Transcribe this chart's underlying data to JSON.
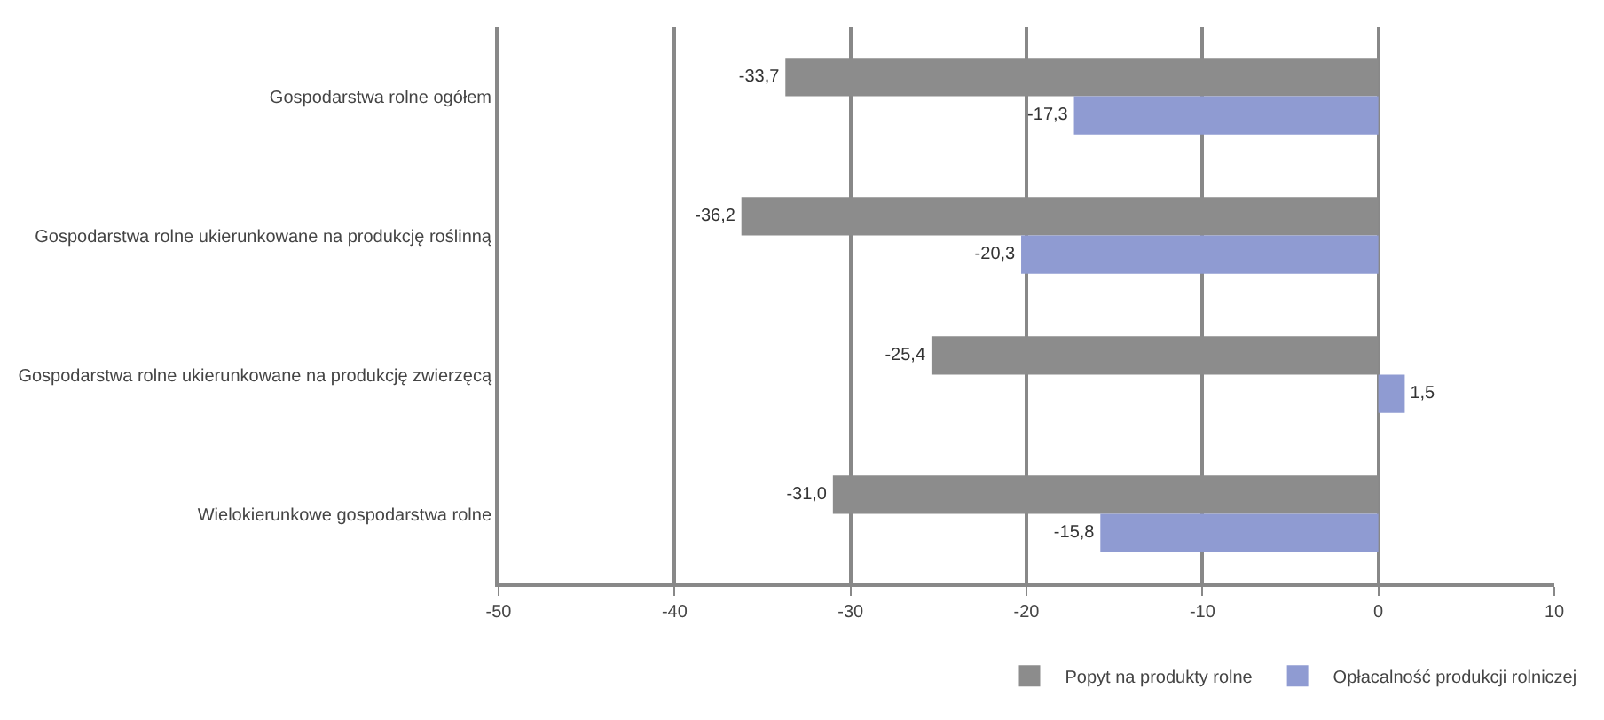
{
  "chart_data": {
    "type": "bar",
    "orientation": "horizontal",
    "categories": [
      "Gospodarstwa rolne ogółem",
      "Gospodarstwa rolne ukierunkowane na produkcję roślinną",
      "Gospodarstwa rolne ukierunkowane na produkcję zwierzęcą",
      "Wielokierunkowe gospodarstwa rolne"
    ],
    "series": [
      {
        "name": "Popyt na produkty rolne",
        "color": "#8c8c8c",
        "values": [
          -33.7,
          -36.2,
          -25.4,
          -31.0
        ],
        "value_labels": [
          "-33,7",
          "-36,2",
          "-25,4",
          "-31,0"
        ]
      },
      {
        "name": "Opłacalność produkcji rolniczej",
        "color": "#8f9bd2",
        "values": [
          -17.3,
          -20.3,
          1.5,
          -15.8
        ],
        "value_labels": [
          "-17,3",
          "-20,3",
          "1,5",
          "-15,8"
        ]
      }
    ],
    "xlim": [
      -50,
      10
    ],
    "xticks": [
      -50,
      -40,
      -30,
      -20,
      -10,
      0,
      10
    ],
    "grid": "x",
    "legend": "bottom"
  }
}
